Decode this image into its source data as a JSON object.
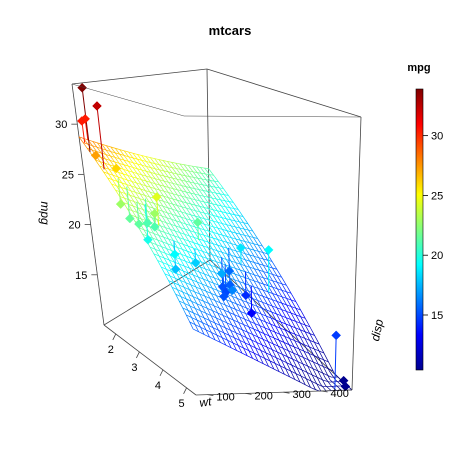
{
  "chart_data": {
    "type": "scatter3d",
    "title": "mtcars",
    "xlabel": "wt",
    "ylabel": "disp",
    "zlabel": "mpg",
    "xlim": [
      1.5,
      5.4
    ],
    "ylim": [
      70,
      480
    ],
    "zlim": [
      10,
      34
    ],
    "x_ticks": [
      "2",
      "3",
      "4",
      "5"
    ],
    "y_ticks": [
      "100",
      "200",
      "300",
      "400"
    ],
    "z_ticks": [
      "15",
      "20",
      "25",
      "30"
    ],
    "colorbar": {
      "title": "mpg",
      "min": 10.4,
      "max": 33.9,
      "ticks": [
        "15",
        "20",
        "25",
        "30"
      ]
    },
    "fitted_surface": {
      "intercept": 35.0,
      "wt_coef": -3.35,
      "disp_coef": -0.0177,
      "grid_lines": 30
    },
    "points": [
      {
        "wt": 2.62,
        "disp": 160.0,
        "mpg": 21.0
      },
      {
        "wt": 2.875,
        "disp": 160.0,
        "mpg": 21.0
      },
      {
        "wt": 2.32,
        "disp": 108.0,
        "mpg": 22.8
      },
      {
        "wt": 3.215,
        "disp": 258.0,
        "mpg": 21.4
      },
      {
        "wt": 3.44,
        "disp": 360.0,
        "mpg": 18.7
      },
      {
        "wt": 3.46,
        "disp": 225.0,
        "mpg": 18.1
      },
      {
        "wt": 3.57,
        "disp": 360.0,
        "mpg": 14.3
      },
      {
        "wt": 3.19,
        "disp": 146.7,
        "mpg": 24.4
      },
      {
        "wt": 3.15,
        "disp": 140.8,
        "mpg": 22.8
      },
      {
        "wt": 3.44,
        "disp": 167.6,
        "mpg": 19.2
      },
      {
        "wt": 3.44,
        "disp": 167.6,
        "mpg": 17.8
      },
      {
        "wt": 4.07,
        "disp": 275.8,
        "mpg": 16.4
      },
      {
        "wt": 3.73,
        "disp": 275.8,
        "mpg": 17.3
      },
      {
        "wt": 3.78,
        "disp": 275.8,
        "mpg": 15.2
      },
      {
        "wt": 5.25,
        "disp": 472.0,
        "mpg": 10.4
      },
      {
        "wt": 5.424,
        "disp": 460.0,
        "mpg": 10.4
      },
      {
        "wt": 5.345,
        "disp": 440.0,
        "mpg": 14.7
      },
      {
        "wt": 2.2,
        "disp": 78.7,
        "mpg": 32.4
      },
      {
        "wt": 1.615,
        "disp": 75.7,
        "mpg": 30.4
      },
      {
        "wt": 1.835,
        "disp": 71.1,
        "mpg": 33.9
      },
      {
        "wt": 2.465,
        "disp": 120.1,
        "mpg": 21.5
      },
      {
        "wt": 3.52,
        "disp": 318.0,
        "mpg": 15.5
      },
      {
        "wt": 3.435,
        "disp": 304.0,
        "mpg": 15.2
      },
      {
        "wt": 3.84,
        "disp": 350.0,
        "mpg": 13.3
      },
      {
        "wt": 3.845,
        "disp": 400.0,
        "mpg": 19.2
      },
      {
        "wt": 1.935,
        "disp": 79.0,
        "mpg": 27.3
      },
      {
        "wt": 2.14,
        "disp": 120.3,
        "mpg": 26.0
      },
      {
        "wt": 1.513,
        "disp": 95.1,
        "mpg": 30.4
      },
      {
        "wt": 3.17,
        "disp": 351.0,
        "mpg": 15.8
      },
      {
        "wt": 2.77,
        "disp": 145.0,
        "mpg": 19.7
      },
      {
        "wt": 3.57,
        "disp": 301.0,
        "mpg": 15.0
      },
      {
        "wt": 2.78,
        "disp": 121.0,
        "mpg": 21.4
      }
    ]
  }
}
